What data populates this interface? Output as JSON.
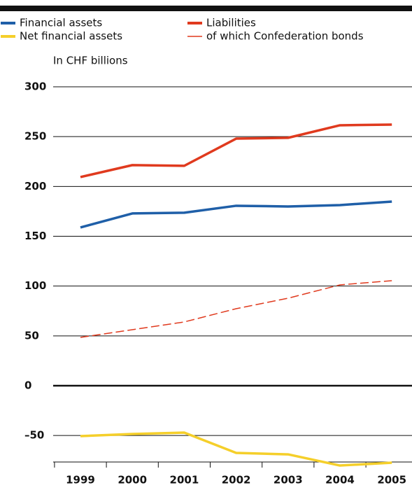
{
  "chart_data": {
    "type": "line",
    "y_label": "In CHF billions",
    "categories": [
      "1999",
      "2000",
      "2001",
      "2002",
      "2003",
      "2004",
      "2005"
    ],
    "series": [
      {
        "name": "Financial assets",
        "color": "#1f5fa8",
        "style": "solid",
        "values": [
          158.8,
          172.9,
          173.6,
          180.6,
          179.9,
          181.3,
          184.8
        ]
      },
      {
        "name": "Liabilities",
        "color": "#e03a1e",
        "style": "solid",
        "values": [
          209.4,
          221.4,
          220.7,
          248.0,
          248.8,
          261.4,
          262.1
        ]
      },
      {
        "name": "Net financial assets",
        "color": "#f5cf2a",
        "style": "solid",
        "values": [
          -50.6,
          -48.5,
          -47.1,
          -67.4,
          -68.9,
          -80.1,
          -77.3
        ]
      },
      {
        "name": "of which Confederation bonds",
        "color": "#e03a1e",
        "style": "dashed",
        "values": [
          48.5,
          56.2,
          64.0,
          77.3,
          87.8,
          101.2,
          105.4
        ]
      }
    ],
    "ylim": [
      -85,
      300
    ],
    "yticks": [
      {
        "value": -50,
        "label": "–50"
      },
      0,
      50,
      100,
      150,
      200,
      250,
      300
    ],
    "grid": true,
    "legend": "top"
  }
}
